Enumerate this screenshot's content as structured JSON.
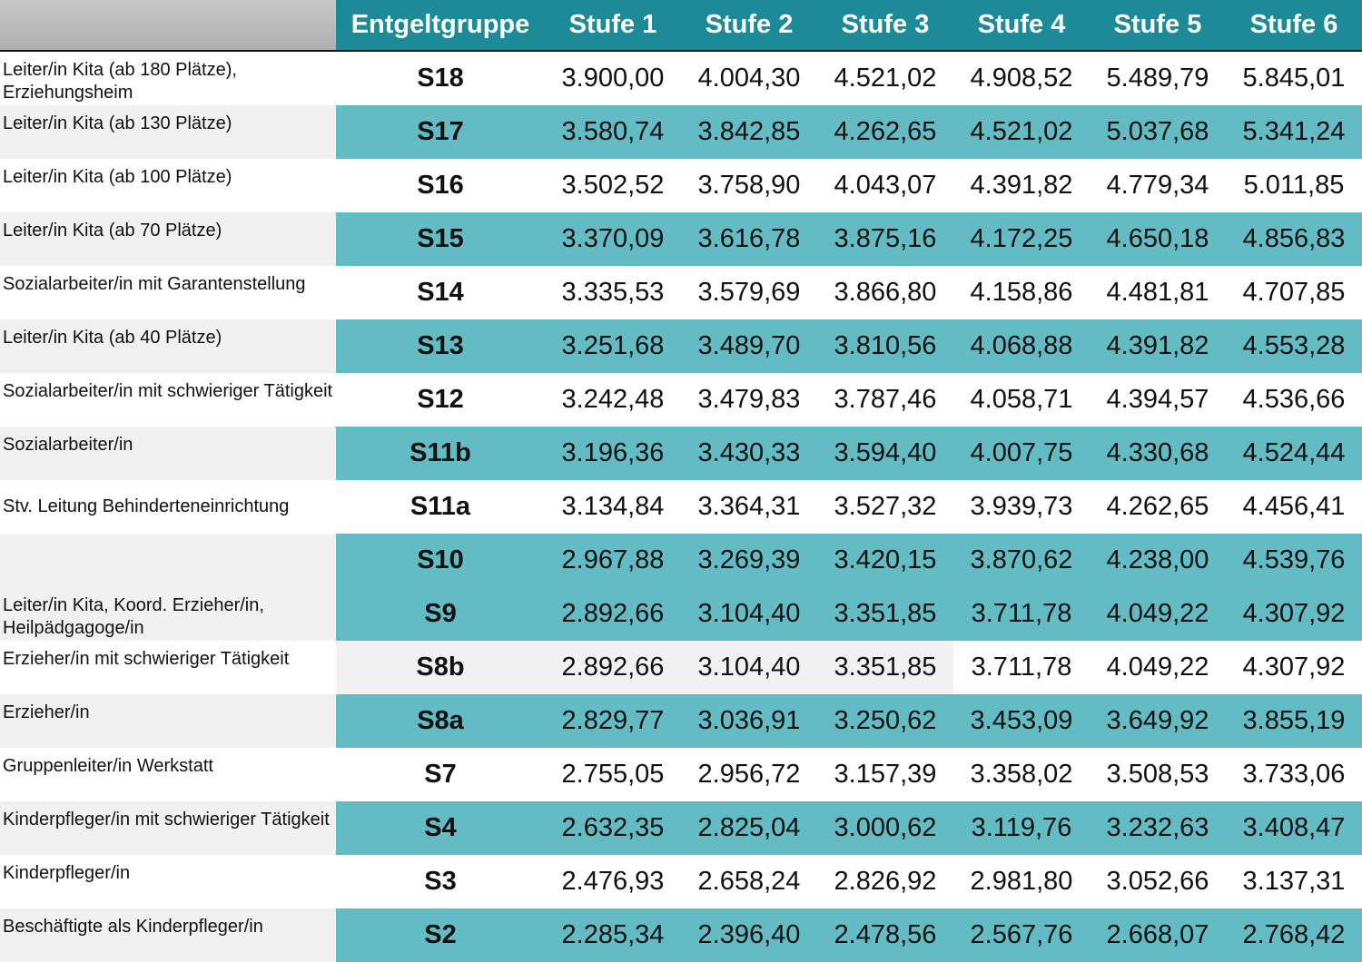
{
  "table": {
    "header": [
      "Entgeltgruppe",
      "Stufe 1",
      "Stufe 2",
      "Stufe 3",
      "Stufe 4",
      "Stufe 5",
      "Stufe 6"
    ],
    "rows": [
      {
        "label": "Leiter/in Kita (ab 180 Plätze), Erziehungsheim",
        "group": "S18",
        "values": [
          "3.900,00",
          "4.004,30",
          "4.521,02",
          "4.908,52",
          "5.489,79",
          "5.845,01"
        ]
      },
      {
        "label": "Leiter/in Kita (ab 130 Plätze)",
        "group": "S17",
        "values": [
          "3.580,74",
          "3.842,85",
          "4.262,65",
          "4.521,02",
          "5.037,68",
          "5.341,24"
        ]
      },
      {
        "label": "Leiter/in Kita (ab 100 Plätze)",
        "group": "S16",
        "values": [
          "3.502,52",
          "3.758,90",
          "4.043,07",
          "4.391,82",
          "4.779,34",
          "5.011,85"
        ]
      },
      {
        "label": "Leiter/in Kita (ab 70 Plätze)",
        "group": "S15",
        "values": [
          "3.370,09",
          "3.616,78",
          "3.875,16",
          "4.172,25",
          "4.650,18",
          "4.856,83"
        ]
      },
      {
        "label": "Sozialarbeiter/in mit Garantenstellung",
        "group": "S14",
        "values": [
          "3.335,53",
          "3.579,69",
          "3.866,80",
          "4.158,86",
          "4.481,81",
          "4.707,85"
        ]
      },
      {
        "label": "Leiter/in Kita (ab 40 Plätze)",
        "group": "S13",
        "values": [
          "3.251,68",
          "3.489,70",
          "3.810,56",
          "4.068,88",
          "4.391,82",
          "4.553,28"
        ]
      },
      {
        "label": "Sozialarbeiter/in mit schwieriger Tätigkeit",
        "group": "S12",
        "values": [
          "3.242,48",
          "3.479,83",
          "3.787,46",
          "4.058,71",
          "4.394,57",
          "4.536,66"
        ]
      },
      {
        "label": "Sozialarbeiter/in",
        "group": "S11b",
        "values": [
          "3.196,36",
          "3.430,33",
          "3.594,40",
          "4.007,75",
          "4.330,68",
          "4.524,44"
        ]
      },
      {
        "label": "Stv. Leitung Behinderteneinrichtung",
        "group": "S11a",
        "values": [
          "3.134,84",
          "3.364,31",
          "3.527,32",
          "3.939,73",
          "4.262,65",
          "4.456,41"
        ]
      },
      {
        "group": "S10",
        "values": [
          "2.967,88",
          "3.269,39",
          "3.420,15",
          "3.870,62",
          "4.238,00",
          "4.539,76"
        ]
      },
      {
        "label": "Leiter/in Kita, Koord. Erzieher/in, Heilpädgagoge/in",
        "group": "S9",
        "values": [
          "2.892,66",
          "3.104,40",
          "3.351,85",
          "3.711,78",
          "4.049,22",
          "4.307,92"
        ]
      },
      {
        "label": "Erzieher/in mit schwieriger Tätigkeit",
        "group": "S8b",
        "values": [
          "2.892,66",
          "3.104,40",
          "3.351,85",
          "3.711,78",
          "4.049,22",
          "4.307,92"
        ]
      },
      {
        "label": "Erzieher/in",
        "group": "S8a",
        "values": [
          "2.829,77",
          "3.036,91",
          "3.250,62",
          "3.453,09",
          "3.649,92",
          "3.855,19"
        ]
      },
      {
        "label": "Gruppenleiter/in Werkstatt",
        "group": "S7",
        "values": [
          "2.755,05",
          "2.956,72",
          "3.157,39",
          "3.358,02",
          "3.508,53",
          "3.733,06"
        ]
      },
      {
        "label": "Kinderpfleger/in mit schwieriger Tätigkeit",
        "group": "S4",
        "values": [
          "2.632,35",
          "2.825,04",
          "3.000,62",
          "3.119,76",
          "3.232,63",
          "3.408,47"
        ]
      },
      {
        "label": "Kinderpfleger/in",
        "group": "S3",
        "values": [
          "2.476,93",
          "2.658,24",
          "2.826,92",
          "2.981,80",
          "3.052,66",
          "3.137,31"
        ]
      },
      {
        "label": "Beschäftigte als Kinderpfleger/in",
        "group": "S2",
        "values": [
          "2.285,34",
          "2.396,40",
          "2.478,56",
          "2.567,76",
          "2.668,07",
          "2.768,42"
        ]
      }
    ]
  }
}
